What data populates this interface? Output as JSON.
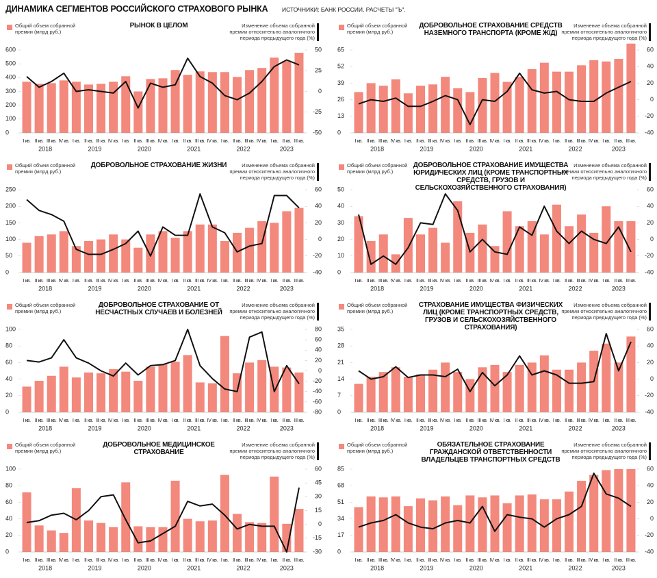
{
  "title": "ДИНАМИКА СЕГМЕНТОВ РОССИЙСКОГО СТРАХОВОГО РЫНКА",
  "source": "ИСТОЧНИКИ: БАНК РОССИИ, РАСЧЕТЫ \"Ъ\".",
  "chart_data": [
    {
      "type": "bar_line",
      "title": "РЫНОК В ЦЕЛОМ",
      "categories": [
        "I кв.",
        "II кв.",
        "III кв.",
        "IV кв.",
        "I кв.",
        "II кв.",
        "III кв.",
        "IV кв.",
        "I кв.",
        "II кв.",
        "III кв.",
        "IV кв.",
        "I кв.",
        "II кв.",
        "III кв.",
        "IV кв.",
        "I кв.",
        "II кв.",
        "III кв.",
        "IV кв.",
        "I кв.",
        "II кв.",
        "III кв."
      ],
      "years": [
        "2018",
        "2019",
        "2020",
        "2021",
        "2022",
        "2023"
      ],
      "series": [
        {
          "name": "Общий объем собранной премии (млрд руб.)",
          "color": "#f3887c",
          "values": [
            370,
            355,
            360,
            380,
            370,
            350,
            355,
            370,
            410,
            300,
            390,
            395,
            455,
            420,
            445,
            440,
            440,
            405,
            455,
            470,
            545,
            520,
            580
          ]
        },
        {
          "name": "Изменение объема собранной премии относительно аналогичного периода предыдущего года (%)",
          "color": "#111111",
          "axis": "y2",
          "values": [
            18,
            5,
            12,
            22,
            0,
            2,
            0,
            -2,
            12,
            -20,
            10,
            5,
            8,
            40,
            18,
            10,
            -5,
            -10,
            -2,
            12,
            30,
            38,
            32
          ]
        }
      ],
      "ylim": [
        0,
        600
      ],
      "yticks": [
        0,
        100,
        200,
        300,
        400,
        500,
        600
      ],
      "y2lim": [
        -50,
        50
      ],
      "y2ticks": [
        -50,
        -25,
        0,
        25,
        50
      ]
    },
    {
      "type": "bar_line",
      "title": "ДОБРОВОЛЬНОЕ СТРАХОВАНИЕ СРЕДСТВ НАЗЕМНОГО ТРАНСПОРТА (КРОМЕ Ж/Д)",
      "categories": [
        "I кв.",
        "II кв.",
        "III кв.",
        "IV кв.",
        "I кв.",
        "II кв.",
        "III кв.",
        "IV кв.",
        "I кв.",
        "II кв.",
        "III кв.",
        "IV кв.",
        "I кв.",
        "II кв.",
        "III кв.",
        "IV кв.",
        "I кв.",
        "II кв.",
        "III кв.",
        "IV кв.",
        "I кв.",
        "II кв.",
        "III кв."
      ],
      "years": [
        "2018",
        "2019",
        "2020",
        "2021",
        "2022",
        "2023"
      ],
      "series": [
        {
          "name": "Общий объем собранной премии (млрд руб.)",
          "color": "#f3887c",
          "values": [
            32,
            39,
            37,
            42,
            31,
            37,
            38,
            44,
            35,
            32,
            43,
            47,
            40,
            44,
            50,
            55,
            48,
            48,
            53,
            57,
            56,
            58,
            70
          ]
        },
        {
          "name": "Изменение объема собранной премии относительно аналогичного периода предыдущего года (%)",
          "color": "#111111",
          "axis": "y2",
          "values": [
            -5,
            0,
            -2,
            2,
            -8,
            -8,
            -2,
            5,
            0,
            -30,
            0,
            -2,
            10,
            32,
            12,
            8,
            10,
            0,
            -2,
            -2,
            8,
            15,
            22
          ]
        }
      ],
      "ylim": [
        0,
        65
      ],
      "yticks": [
        0,
        13,
        26,
        39,
        52,
        65
      ],
      "y2lim": [
        -40,
        60
      ],
      "y2ticks": [
        -40,
        -20,
        0,
        20,
        40,
        60
      ]
    },
    {
      "type": "bar_line",
      "title": "ДОБРОВОЛЬНОЕ СТРАХОВАНИЕ ЖИЗНИ",
      "categories": [
        "I кв.",
        "II кв.",
        "III кв.",
        "IV кв.",
        "I кв.",
        "II кв.",
        "III кв.",
        "IV кв.",
        "I кв.",
        "II кв.",
        "III кв.",
        "IV кв.",
        "I кв.",
        "II кв.",
        "III кв.",
        "IV кв.",
        "I кв.",
        "II кв.",
        "III кв.",
        "IV кв.",
        "I кв.",
        "II кв.",
        "III кв."
      ],
      "years": [
        "2018",
        "2019",
        "2020",
        "2021",
        "2022",
        "2023"
      ],
      "series": [
        {
          "name": "Общий объем собранной премии (млрд руб.)",
          "color": "#f3887c",
          "values": [
            90,
            110,
            115,
            125,
            80,
            95,
            100,
            115,
            100,
            75,
            115,
            125,
            105,
            125,
            145,
            145,
            95,
            120,
            135,
            155,
            150,
            185,
            195
          ]
        },
        {
          "name": "Изменение объема собранной премии относительно аналогичного периода предыдущего года (%)",
          "color": "#111111",
          "axis": "y2",
          "values": [
            48,
            35,
            30,
            22,
            -12,
            -18,
            -18,
            -12,
            -5,
            10,
            -20,
            15,
            5,
            5,
            55,
            15,
            8,
            -15,
            -8,
            -5,
            53,
            53,
            38
          ]
        }
      ],
      "ylim": [
        0,
        250
      ],
      "yticks": [
        0,
        50,
        100,
        150,
        200,
        250
      ],
      "y2lim": [
        -40,
        60
      ],
      "y2ticks": [
        -40,
        -20,
        0,
        20,
        40,
        60
      ]
    },
    {
      "type": "bar_line",
      "title": "ДОБРОВОЛЬНОЕ СТРАХОВАНИЕ ИМУЩЕСТВА ЮРИДИЧЕСКИХ ЛИЦ (КРОМЕ ТРАНСПОРТНЫХ СРЕДСТВ, ГРУЗОВ И СЕЛЬСКОХОЗЯЙСТВЕННОГО СТРАХОВАНИЯ)",
      "categories": [
        "I кв.",
        "II кв.",
        "III кв.",
        "IV кв.",
        "I кв.",
        "II кв.",
        "III кв.",
        "IV кв.",
        "I кв.",
        "II кв.",
        "III кв.",
        "IV кв.",
        "I кв.",
        "II кв.",
        "III кв.",
        "IV кв.",
        "I кв.",
        "II кв.",
        "III кв.",
        "IV кв.",
        "I кв.",
        "II кв.",
        "III кв."
      ],
      "years": [
        "2018",
        "2019",
        "2020",
        "2021",
        "2022",
        "2023"
      ],
      "series": [
        {
          "name": "Общий объем собранной премии (млрд руб.)",
          "color": "#f3887c",
          "values": [
            34,
            19,
            23,
            11,
            33,
            23,
            27,
            18,
            43,
            24,
            29,
            16,
            37,
            28,
            31,
            23,
            41,
            28,
            35,
            24,
            40,
            31,
            31
          ]
        },
        {
          "name": "Изменение объема собранной премии относительно аналогичного периода предыдущего года (%)",
          "color": "#111111",
          "axis": "y2",
          "values": [
            30,
            -30,
            -20,
            -30,
            -10,
            20,
            18,
            55,
            35,
            -15,
            0,
            -15,
            -18,
            15,
            5,
            40,
            10,
            -5,
            10,
            0,
            -5,
            15,
            -15
          ]
        }
      ],
      "ylim": [
        0,
        50
      ],
      "yticks": [
        0,
        10,
        20,
        30,
        40,
        50
      ],
      "y2lim": [
        -40,
        60
      ],
      "y2ticks": [
        -40,
        -20,
        0,
        20,
        40,
        60
      ]
    },
    {
      "type": "bar_line",
      "title": "ДОБРОВОЛЬНОЕ СТРАХОВАНИЕ ОТ НЕСЧАСТНЫХ СЛУЧАЕВ И БОЛЕЗНЕЙ",
      "categories": [
        "I кв.",
        "II кв.",
        "III кв.",
        "IV кв.",
        "I кв.",
        "II кв.",
        "III кв.",
        "IV кв.",
        "I кв.",
        "II кв.",
        "III кв.",
        "IV кв.",
        "I кв.",
        "II кв.",
        "III кв.",
        "IV кв.",
        "I кв.",
        "II кв.",
        "III кв.",
        "IV кв.",
        "I кв.",
        "II кв.",
        "III кв."
      ],
      "years": [
        "2018",
        "2019",
        "2020",
        "2021",
        "2022",
        "2023"
      ],
      "series": [
        {
          "name": "Общий объем собранной премии (млрд руб.)",
          "color": "#f3887c",
          "values": [
            31,
            38,
            44,
            55,
            42,
            48,
            47,
            52,
            49,
            38,
            55,
            58,
            61,
            69,
            36,
            35,
            92,
            47,
            60,
            63,
            55,
            54,
            48
          ]
        },
        {
          "name": "Изменение объема собранной премии относительно аналогичного периода предыдущего года (%)",
          "color": "#111111",
          "axis": "y2",
          "values": [
            20,
            17,
            25,
            60,
            25,
            15,
            0,
            -10,
            15,
            -8,
            10,
            12,
            20,
            80,
            10,
            -15,
            -35,
            -40,
            65,
            75,
            -40,
            10,
            -25
          ]
        }
      ],
      "ylim": [
        0,
        100
      ],
      "yticks": [
        0,
        20,
        40,
        60,
        80,
        100
      ],
      "y2lim": [
        -80,
        80
      ],
      "y2ticks": [
        -80,
        -60,
        -40,
        -20,
        0,
        20,
        40,
        60,
        80
      ]
    },
    {
      "type": "bar_line",
      "title": "СТРАХОВАНИЕ ИМУЩЕСТВА ФИЗИЧЕСКИХ ЛИЦ (КРОМЕ ТРАНСПОРТНЫХ СРЕДСТВ, ГРУЗОВ И СЕЛЬСКОХОЗЯЙСТВЕННОГО СТРАХОВАНИЯ)",
      "categories": [
        "I кв.",
        "II кв.",
        "III кв.",
        "IV кв.",
        "I кв.",
        "II кв.",
        "III кв.",
        "IV кв.",
        "I кв.",
        "II кв.",
        "III кв.",
        "IV кв.",
        "I кв.",
        "II кв.",
        "III кв.",
        "IV кв.",
        "I кв.",
        "II кв.",
        "III кв.",
        "IV кв.",
        "I кв.",
        "II кв.",
        "III кв."
      ],
      "years": [
        "2018",
        "2019",
        "2020",
        "2021",
        "2022",
        "2023"
      ],
      "series": [
        {
          "name": "Общий объем собранной премии (млрд руб.)",
          "color": "#f3887c",
          "values": [
            12,
            15,
            17,
            19,
            15,
            16,
            18,
            21,
            17,
            14,
            19,
            20,
            17,
            20,
            21,
            24,
            18,
            18,
            21,
            26,
            29,
            21,
            32
          ]
        },
        {
          "name": "Изменение объема собранной премии относительно аналогичного периода предыдущего года (%)",
          "color": "#111111",
          "axis": "y2",
          "values": [
            10,
            0,
            3,
            15,
            2,
            5,
            5,
            3,
            12,
            -15,
            8,
            -8,
            5,
            28,
            5,
            10,
            5,
            -5,
            -5,
            -3,
            55,
            10,
            45
          ]
        }
      ],
      "ylim": [
        0,
        35
      ],
      "yticks": [
        0,
        7,
        14,
        21,
        28,
        35
      ],
      "y2lim": [
        -40,
        60
      ],
      "y2ticks": [
        -40,
        -20,
        0,
        20,
        40,
        60
      ]
    },
    {
      "type": "bar_line",
      "title": "ДОБРОВОЛЬНОЕ МЕДИЦИНСКОЕ СТРАХОВАНИЕ",
      "categories": [
        "I кв.",
        "II кв.",
        "III кв.",
        "IV кв.",
        "I кв.",
        "II кв.",
        "III кв.",
        "IV кв.",
        "I кв.",
        "II кв.",
        "III кв.",
        "IV кв.",
        "I кв.",
        "II кв.",
        "III кв.",
        "IV кв.",
        "I кв.",
        "II кв.",
        "III кв.",
        "IV кв.",
        "I кв.",
        "II кв.",
        "III кв."
      ],
      "years": [
        "2018",
        "2019",
        "2020",
        "2021",
        "2022",
        "2023"
      ],
      "series": [
        {
          "name": "Общий объем собранной премии (млрд руб.)",
          "color": "#f3887c",
          "values": [
            72,
            32,
            26,
            23,
            77,
            38,
            35,
            30,
            84,
            31,
            30,
            30,
            86,
            40,
            37,
            38,
            93,
            46,
            36,
            35,
            91,
            34,
            52
          ]
        },
        {
          "name": "Изменение объема собранной премии относительно аналогичного периода предыдущего года (%)",
          "color": "#111111",
          "axis": "y2",
          "values": [
            2,
            4,
            10,
            12,
            5,
            15,
            30,
            32,
            5,
            -20,
            -18,
            -10,
            -2,
            25,
            20,
            22,
            10,
            -5,
            0,
            -2,
            -2,
            -30,
            40
          ]
        }
      ],
      "ylim": [
        0,
        100
      ],
      "yticks": [
        0,
        20,
        40,
        60,
        80,
        100
      ],
      "y2lim": [
        -30,
        60
      ],
      "y2ticks": [
        -30,
        -15,
        0,
        15,
        30,
        45,
        60
      ]
    },
    {
      "type": "bar_line",
      "title": "ОБЯЗАТЕЛЬНОЕ СТРАХОВАНИЕ ГРАЖДАНСКОЙ ОТВЕТСТВЕННОСТИ ВЛАДЕЛЬЦЕВ ТРАНСПОРТНЫХ СРЕДСТВ",
      "categories": [
        "I кв.",
        "II кв.",
        "III кв.",
        "IV кв.",
        "I кв.",
        "II кв.",
        "III кв.",
        "IV кв.",
        "I кв.",
        "II кв.",
        "III кв.",
        "IV кв.",
        "I кв.",
        "II кв.",
        "III кв.",
        "IV кв.",
        "I кв.",
        "II кв.",
        "III кв.",
        "IV кв.",
        "I кв.",
        "II кв.",
        "III кв."
      ],
      "years": [
        "2018",
        "2019",
        "2020",
        "2021",
        "2022",
        "2023"
      ],
      "series": [
        {
          "name": "Общий объем собранной премии (млрд руб.)",
          "color": "#f3887c",
          "values": [
            46,
            57,
            56,
            57,
            47,
            55,
            53,
            57,
            48,
            58,
            56,
            58,
            50,
            58,
            59,
            54,
            54,
            62,
            73,
            79,
            84,
            85,
            85
          ]
        },
        {
          "name": "Изменение объема собранной премии относительно аналогичного периода предыдущего года (%)",
          "color": "#111111",
          "axis": "y2",
          "values": [
            -10,
            -5,
            -2,
            5,
            -5,
            -10,
            -12,
            -5,
            -2,
            -5,
            15,
            -15,
            5,
            2,
            0,
            -10,
            0,
            5,
            15,
            55,
            30,
            25,
            15
          ]
        }
      ],
      "ylim": [
        0,
        85
      ],
      "yticks": [
        0,
        17,
        34,
        51,
        68,
        85
      ],
      "y2lim": [
        -40,
        60
      ],
      "y2ticks": [
        -40,
        -20,
        0,
        20,
        40,
        60
      ]
    }
  ]
}
